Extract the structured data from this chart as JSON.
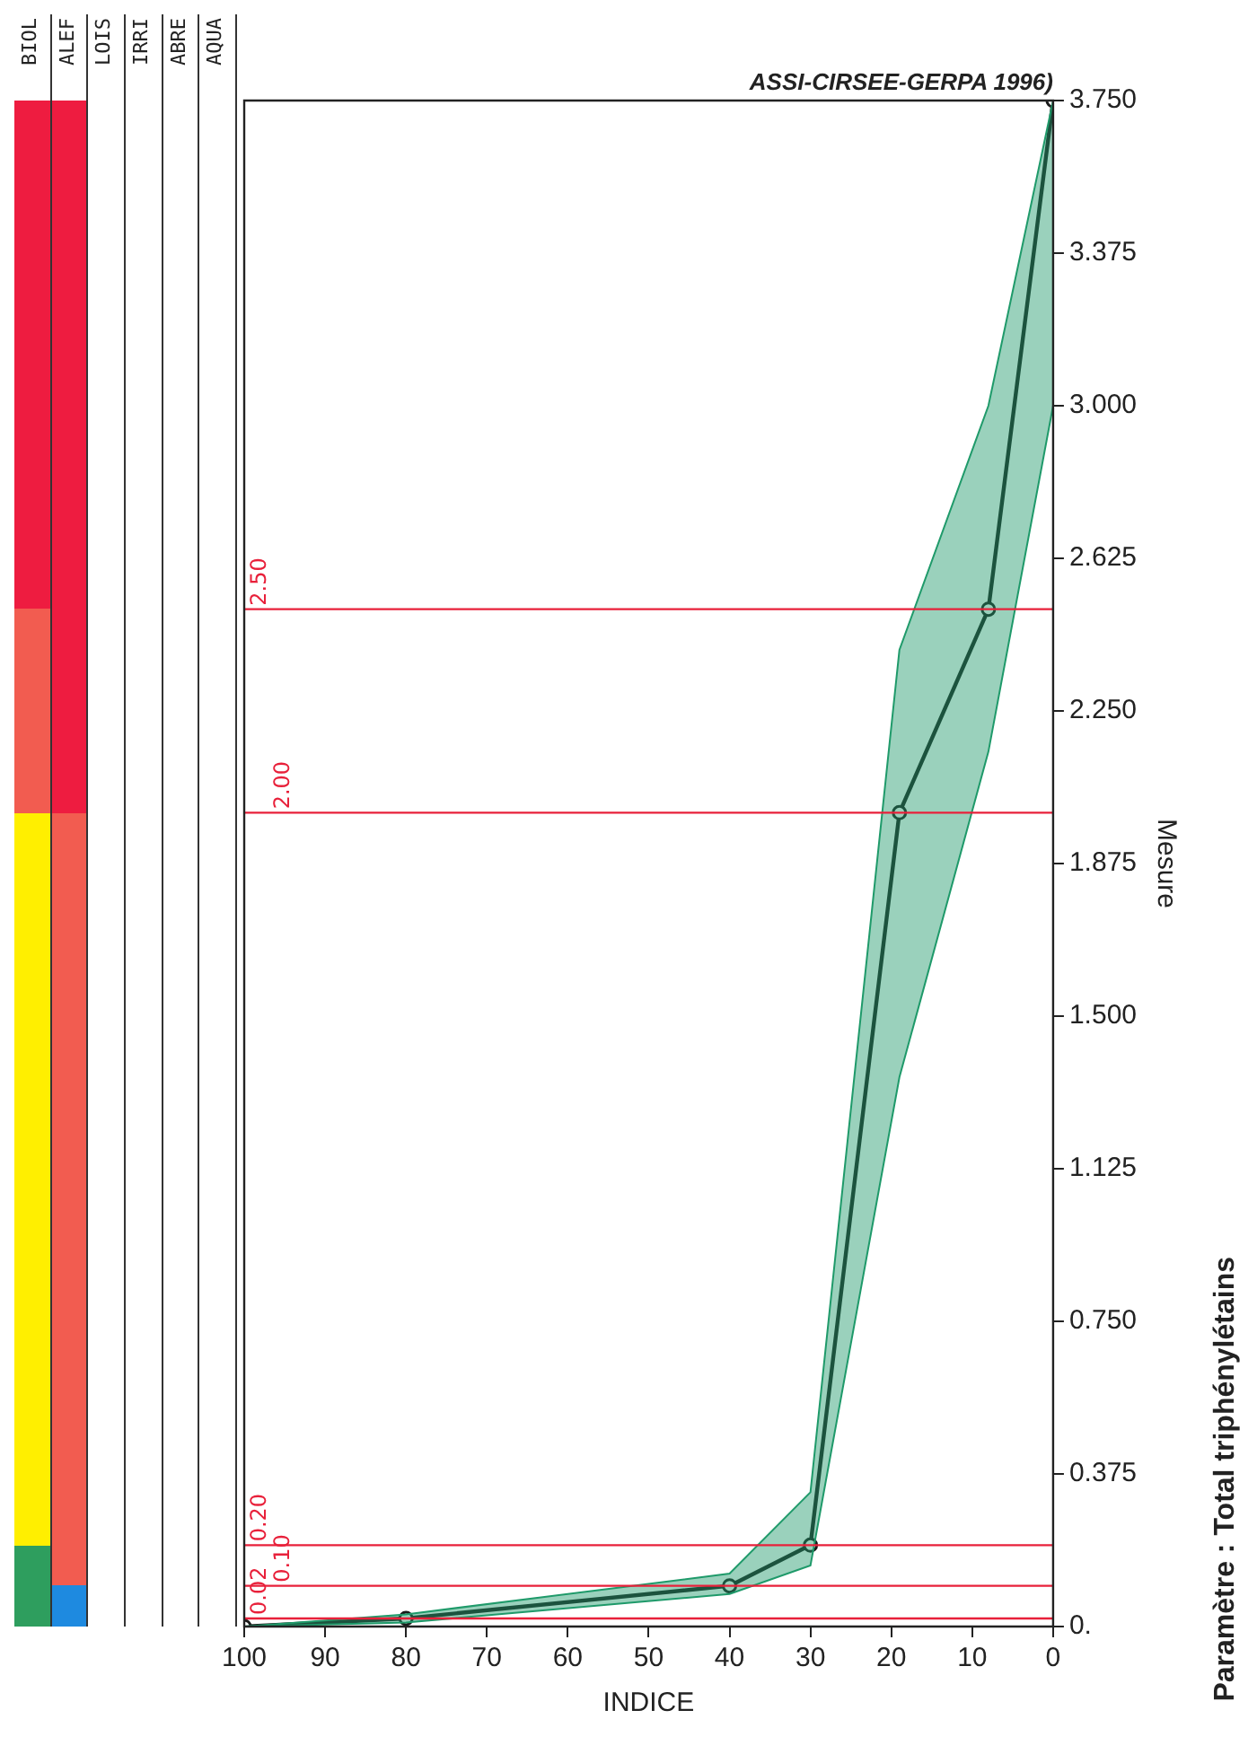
{
  "chart_data": {
    "type": "line",
    "title": "Paramètre : Total triphénylétains",
    "xlabel": "INDICE",
    "ylabel": "Mesure",
    "xlim": [
      100,
      0
    ],
    "xticks": [
      0,
      10,
      20,
      30,
      40,
      50,
      60,
      70,
      80,
      90,
      100
    ],
    "ylim": [
      0,
      3.75
    ],
    "yticks": [
      {
        "value": 0,
        "label": "0."
      },
      {
        "value": 0.375,
        "label": "0.375"
      },
      {
        "value": 0.75,
        "label": "0.750"
      },
      {
        "value": 1.125,
        "label": "1.125"
      },
      {
        "value": 1.5,
        "label": "1.500"
      },
      {
        "value": 1.875,
        "label": "1.875"
      },
      {
        "value": 2.25,
        "label": "2.250"
      },
      {
        "value": 2.625,
        "label": "2.625"
      },
      {
        "value": 3,
        "label": "3.000"
      },
      {
        "value": 3.375,
        "label": "3.375"
      },
      {
        "value": 3.75,
        "label": "3.750"
      }
    ],
    "grid": false,
    "legend": false,
    "marker": "circle",
    "line_style": "solid",
    "series": [
      {
        "color": "#1a1a1a",
        "x": [
          100,
          80,
          40,
          30,
          19,
          8,
          0
        ],
        "values": [
          0,
          0.02,
          0.1,
          0.2,
          2.0,
          2.5,
          3.75
        ],
        "lower": [
          0,
          0.01,
          0.08,
          0.15,
          1.35,
          2.15,
          3.0
        ],
        "upper": [
          0,
          0.03,
          0.13,
          0.33,
          2.4,
          3.0,
          3.75
        ]
      }
    ],
    "ref_lines": [
      {
        "axis": "y",
        "value": 0.02,
        "label": "0.02",
        "color": "#e8203a"
      },
      {
        "axis": "y",
        "value": 0.1,
        "label": "0.10",
        "color": "#e8203a"
      },
      {
        "axis": "y",
        "value": 0.2,
        "label": "0.20",
        "color": "#e8203a"
      },
      {
        "axis": "y",
        "value": 2.0,
        "label": "2.00",
        "color": "#e8203a"
      },
      {
        "axis": "y",
        "value": 2.5,
        "label": "2.50",
        "color": "#e8203a"
      }
    ],
    "annotations": [
      "ASSI-CIRSEE-GERPA 1996)",
      "BIOL",
      "ALEF",
      "LOIS",
      "IRRI",
      "ABRE",
      "AQUA"
    ]
  }
}
